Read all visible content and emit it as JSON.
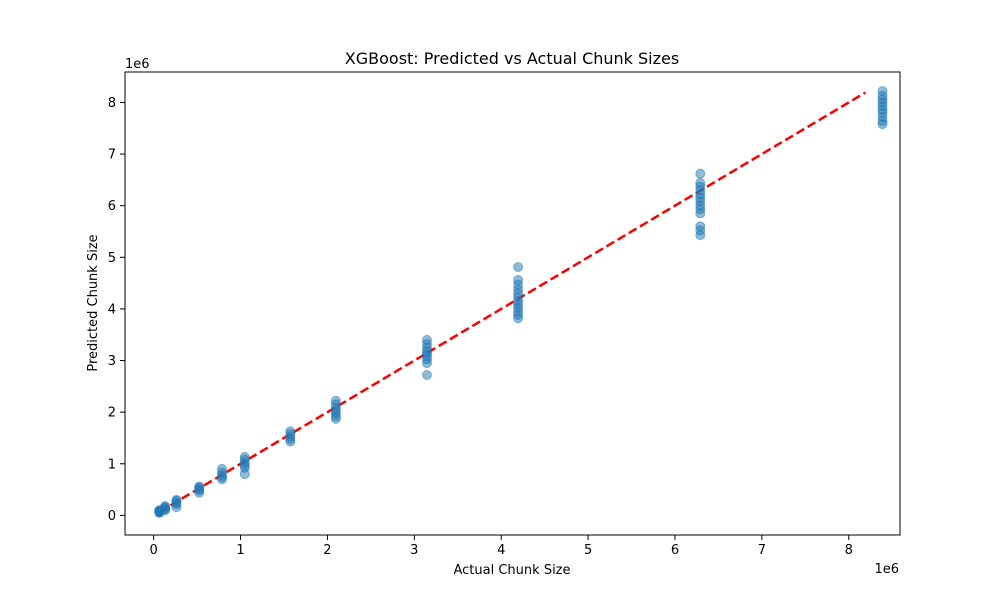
{
  "chart_data": {
    "type": "scatter",
    "title": "XGBoost: Predicted vs Actual Chunk Sizes",
    "xlabel": "Actual Chunk Size",
    "ylabel": "Predicted Chunk Size",
    "x_offset_label": "1e6",
    "y_offset_label": "1e6",
    "xlim": [
      -0.33,
      8.59
    ],
    "ylim": [
      -0.38,
      8.59
    ],
    "xticks": [
      0,
      1,
      2,
      3,
      4,
      5,
      6,
      7,
      8
    ],
    "yticks": [
      0,
      1,
      2,
      3,
      4,
      5,
      6,
      7,
      8
    ],
    "grid": false,
    "point_color": "#1f77b4",
    "reference_line": {
      "from": [
        0.065536,
        0.065536
      ],
      "to": [
        8.192,
        8.192
      ],
      "color": "#ff0000",
      "style": "dashed"
    },
    "series": [
      {
        "points": [
          [
            0.065536,
            0.05
          ],
          [
            0.065536,
            0.06
          ],
          [
            0.065536,
            0.07
          ],
          [
            0.065536,
            0.08
          ],
          [
            0.065536,
            0.09
          ],
          [
            0.065536,
            0.1
          ],
          [
            0.131072,
            0.1
          ],
          [
            0.131072,
            0.12
          ],
          [
            0.131072,
            0.14
          ],
          [
            0.131072,
            0.16
          ],
          [
            0.131072,
            0.18
          ],
          [
            0.262144,
            0.16
          ],
          [
            0.262144,
            0.22
          ],
          [
            0.262144,
            0.25
          ],
          [
            0.262144,
            0.28
          ],
          [
            0.262144,
            0.3
          ],
          [
            0.524288,
            0.44
          ],
          [
            0.524288,
            0.48
          ],
          [
            0.524288,
            0.51
          ],
          [
            0.524288,
            0.54
          ],
          [
            0.524288,
            0.56
          ],
          [
            0.786432,
            0.7
          ],
          [
            0.786432,
            0.74
          ],
          [
            0.786432,
            0.78
          ],
          [
            0.786432,
            0.83
          ],
          [
            0.786432,
            0.9
          ],
          [
            1.048576,
            0.8
          ],
          [
            1.048576,
            0.92
          ],
          [
            1.048576,
            0.97
          ],
          [
            1.048576,
            1.02
          ],
          [
            1.048576,
            1.08
          ],
          [
            1.048576,
            1.13
          ],
          [
            1.572864,
            1.43
          ],
          [
            1.572864,
            1.48
          ],
          [
            1.572864,
            1.53
          ],
          [
            1.572864,
            1.58
          ],
          [
            1.572864,
            1.63
          ],
          [
            2.097152,
            1.87
          ],
          [
            2.097152,
            1.92
          ],
          [
            2.097152,
            1.98
          ],
          [
            2.097152,
            2.03
          ],
          [
            2.097152,
            2.08
          ],
          [
            2.097152,
            2.15
          ],
          [
            2.097152,
            2.22
          ],
          [
            3.145728,
            2.72
          ],
          [
            3.145728,
            2.95
          ],
          [
            3.145728,
            3.02
          ],
          [
            3.145728,
            3.08
          ],
          [
            3.145728,
            3.13
          ],
          [
            3.145728,
            3.18
          ],
          [
            3.145728,
            3.25
          ],
          [
            3.145728,
            3.32
          ],
          [
            3.145728,
            3.4
          ],
          [
            4.194304,
            3.82
          ],
          [
            4.194304,
            3.88
          ],
          [
            4.194304,
            3.95
          ],
          [
            4.194304,
            4.02
          ],
          [
            4.194304,
            4.08
          ],
          [
            4.194304,
            4.15
          ],
          [
            4.194304,
            4.22
          ],
          [
            4.194304,
            4.3
          ],
          [
            4.194304,
            4.38
          ],
          [
            4.194304,
            4.47
          ],
          [
            4.194304,
            4.56
          ],
          [
            4.194304,
            4.81
          ],
          [
            6.291456,
            5.43
          ],
          [
            6.291456,
            5.52
          ],
          [
            6.291456,
            5.6
          ],
          [
            6.291456,
            5.85
          ],
          [
            6.291456,
            5.93
          ],
          [
            6.291456,
            6.0
          ],
          [
            6.291456,
            6.08
          ],
          [
            6.291456,
            6.15
          ],
          [
            6.291456,
            6.22
          ],
          [
            6.291456,
            6.3
          ],
          [
            6.291456,
            6.37
          ],
          [
            6.291456,
            6.44
          ],
          [
            6.291456,
            6.62
          ],
          [
            8.388608,
            7.58
          ],
          [
            8.388608,
            7.64
          ],
          [
            8.388608,
            7.72
          ],
          [
            8.388608,
            7.8
          ],
          [
            8.388608,
            7.86
          ],
          [
            8.388608,
            7.93
          ],
          [
            8.388608,
            8.0
          ],
          [
            8.388608,
            8.06
          ],
          [
            8.388608,
            8.13
          ],
          [
            8.388608,
            8.22
          ]
        ]
      }
    ]
  }
}
